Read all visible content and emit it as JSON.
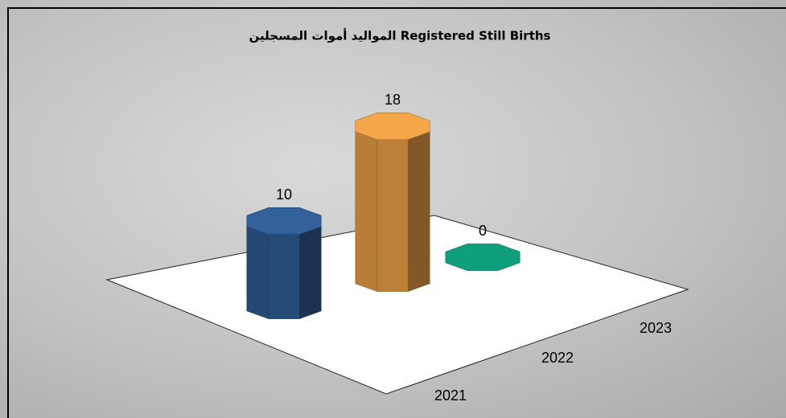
{
  "chart_data": {
    "type": "bar3d",
    "title": "المواليد أموات المسجلين Registered Still Births",
    "categories": [
      "2021",
      "2022",
      "2023"
    ],
    "values": [
      10,
      18,
      0
    ],
    "colors": [
      "#2f5a8f",
      "#e39a44",
      "#0f9373"
    ]
  }
}
